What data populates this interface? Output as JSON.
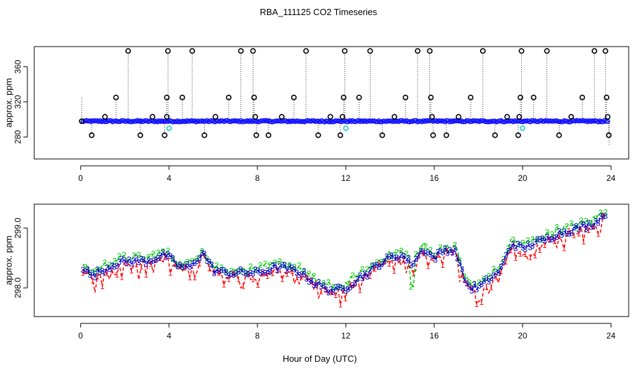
{
  "title": "RBA_111125  CO2 Timeseries",
  "xlabel": "Hour of Day (UTC)",
  "colors": {
    "black": "#000000",
    "blue": "#1010ff",
    "cyan": "#00c8c8",
    "red": "#ff0000",
    "green": "#00cc00",
    "darkblue": "#0000cc"
  },
  "chart_data": [
    {
      "type": "scatter",
      "ylabel": "approx. ppm",
      "xlim": [
        -2.1,
        24.8
      ],
      "ylim": [
        255,
        383
      ],
      "xticks": [
        0,
        4,
        8,
        12,
        16,
        20,
        24
      ],
      "yticks": [
        280,
        320,
        360
      ],
      "ytick_labels": [
        "280",
        "320",
        "360"
      ],
      "baseline_ppm": 298,
      "baseline_range_hours": [
        0.05,
        23.9
      ],
      "spikes_open_circle": [
        {
          "x": 0.5,
          "y": 282
        },
        {
          "x": 1.1,
          "y": 303
        },
        {
          "x": 1.6,
          "y": 325
        },
        {
          "x": 2.15,
          "y": 378
        },
        {
          "x": 2.7,
          "y": 282
        },
        {
          "x": 3.25,
          "y": 303
        },
        {
          "x": 3.8,
          "y": 282
        },
        {
          "x": 3.9,
          "y": 303
        },
        {
          "x": 3.9,
          "y": 325
        },
        {
          "x": 3.95,
          "y": 378
        },
        {
          "x": 4.6,
          "y": 325
        },
        {
          "x": 5.05,
          "y": 378
        },
        {
          "x": 5.6,
          "y": 282
        },
        {
          "x": 6.1,
          "y": 303
        },
        {
          "x": 6.7,
          "y": 325
        },
        {
          "x": 7.25,
          "y": 378
        },
        {
          "x": 7.8,
          "y": 378
        },
        {
          "x": 7.85,
          "y": 325
        },
        {
          "x": 7.9,
          "y": 303
        },
        {
          "x": 7.95,
          "y": 282
        },
        {
          "x": 8.5,
          "y": 282
        },
        {
          "x": 9.1,
          "y": 303
        },
        {
          "x": 9.65,
          "y": 325
        },
        {
          "x": 10.2,
          "y": 378
        },
        {
          "x": 10.75,
          "y": 282
        },
        {
          "x": 11.3,
          "y": 303
        },
        {
          "x": 11.75,
          "y": 282
        },
        {
          "x": 11.85,
          "y": 303
        },
        {
          "x": 11.9,
          "y": 325
        },
        {
          "x": 11.95,
          "y": 378
        },
        {
          "x": 12.6,
          "y": 325
        },
        {
          "x": 13.1,
          "y": 378
        },
        {
          "x": 13.65,
          "y": 282
        },
        {
          "x": 14.2,
          "y": 303
        },
        {
          "x": 14.7,
          "y": 325
        },
        {
          "x": 15.25,
          "y": 378
        },
        {
          "x": 15.8,
          "y": 378
        },
        {
          "x": 15.85,
          "y": 325
        },
        {
          "x": 15.9,
          "y": 303
        },
        {
          "x": 15.95,
          "y": 282
        },
        {
          "x": 16.55,
          "y": 282
        },
        {
          "x": 17.1,
          "y": 303
        },
        {
          "x": 17.65,
          "y": 325
        },
        {
          "x": 18.2,
          "y": 378
        },
        {
          "x": 18.75,
          "y": 282
        },
        {
          "x": 19.3,
          "y": 303
        },
        {
          "x": 19.8,
          "y": 282
        },
        {
          "x": 19.85,
          "y": 303
        },
        {
          "x": 19.9,
          "y": 325
        },
        {
          "x": 19.95,
          "y": 378
        },
        {
          "x": 20.5,
          "y": 325
        },
        {
          "x": 21.1,
          "y": 378
        },
        {
          "x": 21.65,
          "y": 282
        },
        {
          "x": 22.2,
          "y": 303
        },
        {
          "x": 22.7,
          "y": 325
        },
        {
          "x": 23.25,
          "y": 378
        },
        {
          "x": 23.75,
          "y": 378
        },
        {
          "x": 23.8,
          "y": 325
        },
        {
          "x": 23.85,
          "y": 303
        },
        {
          "x": 23.9,
          "y": 282
        }
      ],
      "cyan_points": [
        {
          "x": 4.0,
          "y": 290
        },
        {
          "x": 12.0,
          "y": 290
        },
        {
          "x": 20.0,
          "y": 290
        }
      ]
    },
    {
      "type": "line",
      "ylabel": "approx. ppm",
      "xlim": [
        -2.1,
        24.8
      ],
      "ylim": [
        297.52,
        299.4
      ],
      "xticks": [
        0,
        4,
        8,
        12,
        16,
        20,
        24
      ],
      "yticks": [
        298.0,
        299.0
      ],
      "ytick_labels": [
        "298.0",
        "299.0"
      ],
      "anchors": [
        [
          0.1,
          298.35
        ],
        [
          0.5,
          298.2
        ],
        [
          1.0,
          298.3
        ],
        [
          1.5,
          298.4
        ],
        [
          2.2,
          298.45
        ],
        [
          3.0,
          298.45
        ],
        [
          3.8,
          298.55
        ],
        [
          4.5,
          298.35
        ],
        [
          5.0,
          298.35
        ],
        [
          5.5,
          298.6
        ],
        [
          6.0,
          298.3
        ],
        [
          6.5,
          298.25
        ],
        [
          7.0,
          298.25
        ],
        [
          8.0,
          298.25
        ],
        [
          8.5,
          298.3
        ],
        [
          9.0,
          298.35
        ],
        [
          9.5,
          298.3
        ],
        [
          10.0,
          298.25
        ],
        [
          10.5,
          298.1
        ],
        [
          11.0,
          298.0
        ],
        [
          11.5,
          297.95
        ],
        [
          12.0,
          298.0
        ],
        [
          12.5,
          298.15
        ],
        [
          13.0,
          298.25
        ],
        [
          13.5,
          298.4
        ],
        [
          14.0,
          298.5
        ],
        [
          14.5,
          298.55
        ],
        [
          15.0,
          298.4
        ],
        [
          15.5,
          298.65
        ],
        [
          16.0,
          298.5
        ],
        [
          16.5,
          298.65
        ],
        [
          17.0,
          298.6
        ],
        [
          17.3,
          298.2
        ],
        [
          17.6,
          298.0
        ],
        [
          18.0,
          298.0
        ],
        [
          18.5,
          298.15
        ],
        [
          19.0,
          298.3
        ],
        [
          19.5,
          298.75
        ],
        [
          20.0,
          298.65
        ],
        [
          20.5,
          298.75
        ],
        [
          21.0,
          298.8
        ],
        [
          21.5,
          298.9
        ],
        [
          22.0,
          298.95
        ],
        [
          22.5,
          299.0
        ],
        [
          23.0,
          299.05
        ],
        [
          23.3,
          299.1
        ],
        [
          23.75,
          299.25
        ]
      ],
      "series": [
        {
          "name": "1",
          "color_key": "red",
          "offset": -0.05,
          "dash": "5,3"
        },
        {
          "name": "2",
          "color_key": "green",
          "offset": 0.06,
          "dash": "5,3"
        },
        {
          "name": "3",
          "color_key": "darkblue",
          "offset": 0.0,
          "dash": "5,3"
        }
      ]
    }
  ]
}
